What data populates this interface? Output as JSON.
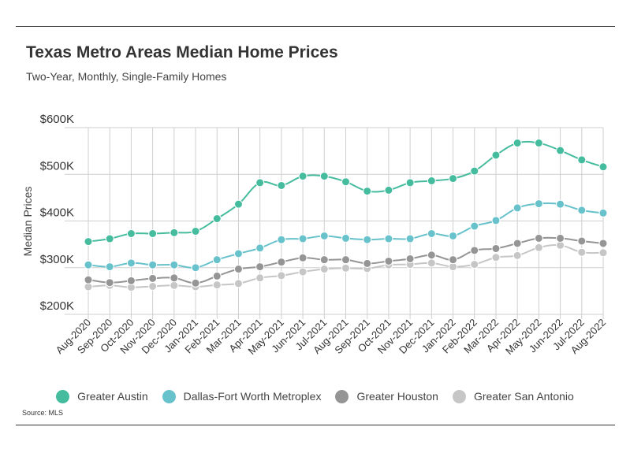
{
  "title": "Texas Metro Areas Median Home Prices",
  "subtitle": "Two-Year, Monthly, Single-Family Homes",
  "source": "Source:  MLS",
  "chart_data": {
    "type": "line",
    "title": "Texas Metro Areas Median Home Prices",
    "subtitle": "Two-Year, Monthly, Single-Family Homes",
    "xlabel": "",
    "ylabel": "Median Prices",
    "ylim": [
      200000,
      600000
    ],
    "yticks": [
      200000,
      300000,
      400000,
      500000,
      600000
    ],
    "ytick_labels": [
      "$200K",
      "$300K",
      "$400K",
      "$500K",
      "$600K"
    ],
    "grid": "vertical and horizontal",
    "legend_position": "bottom",
    "x": [
      "Aug-2020",
      "Sep-2020",
      "Oct-2020",
      "Nov-2020",
      "Dec-2020",
      "Jan-2021",
      "Feb-2021",
      "Mar-2021",
      "Apr-2021",
      "May-2021",
      "Jun-2021",
      "Jul-2021",
      "Aug-2021",
      "Sep-2021",
      "Oct-2021",
      "Nov-2021",
      "Dec-2021",
      "Jan-2022",
      "Feb-2022",
      "Mar-2022",
      "Apr-2022",
      "May-2022",
      "Jun-2022",
      "Jul-2022",
      "Aug-2022"
    ],
    "series": [
      {
        "name": "Greater Austin",
        "color": "#45bc9e",
        "values": [
          356000,
          362000,
          373000,
          373000,
          375000,
          378000,
          405000,
          436000,
          482000,
          476000,
          496000,
          496000,
          484000,
          464000,
          466000,
          482000,
          486000,
          491000,
          507000,
          541000,
          567000,
          567000,
          551000,
          531000,
          516000
        ]
      },
      {
        "name": "Dallas-Fort Worth Metroplex",
        "color": "#67c2cc",
        "values": [
          306000,
          302000,
          310000,
          306000,
          306000,
          300000,
          317000,
          330000,
          342000,
          360000,
          362000,
          368000,
          363000,
          360000,
          362000,
          362000,
          373000,
          368000,
          389000,
          401000,
          428000,
          437000,
          436000,
          423000,
          417000
        ]
      },
      {
        "name": "Greater Houston",
        "color": "#959595",
        "values": [
          274000,
          268000,
          272000,
          277000,
          278000,
          267000,
          282000,
          297000,
          302000,
          312000,
          321000,
          317000,
          317000,
          309000,
          314000,
          319000,
          327000,
          317000,
          337000,
          341000,
          352000,
          363000,
          363000,
          357000,
          352000
        ]
      },
      {
        "name": "Greater San Antonio",
        "color": "#c6c6c6",
        "values": [
          259000,
          262000,
          258000,
          260000,
          262000,
          259000,
          263000,
          266000,
          278000,
          283000,
          291000,
          297000,
          299000,
          298000,
          306000,
          307000,
          310000,
          302000,
          307000,
          322000,
          326000,
          343000,
          348000,
          333000,
          332000
        ]
      }
    ]
  }
}
